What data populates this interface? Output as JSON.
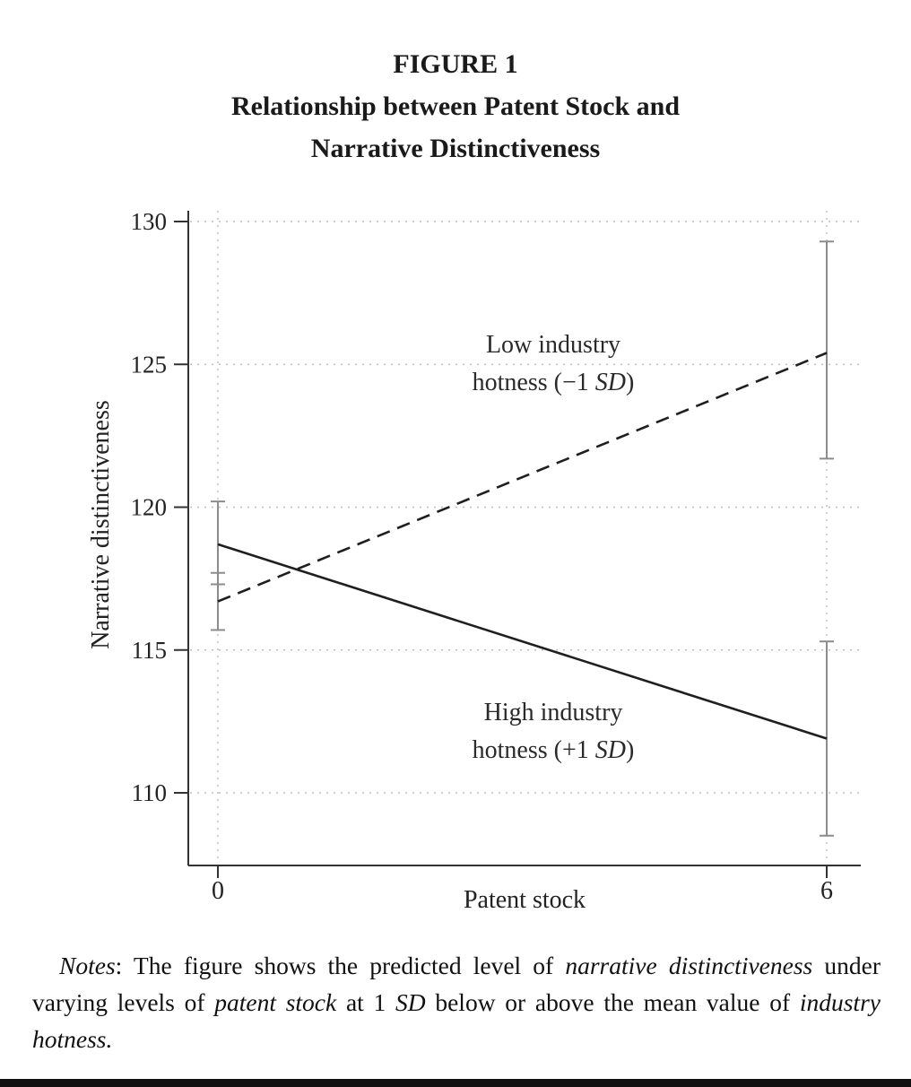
{
  "figure": {
    "label": "FIGURE 1",
    "title_line1": "Relationship between Patent Stock and",
    "title_line2": "Narrative Distinctiveness"
  },
  "chart_data": {
    "type": "line",
    "title": "Relationship between Patent Stock and Narrative Distinctiveness",
    "xlabel": "Patent stock",
    "ylabel": "Narrative distinctiveness",
    "x_ticks": [
      0,
      6
    ],
    "y_ticks": [
      110,
      115,
      120,
      125,
      130
    ],
    "xlim": [
      0,
      6
    ],
    "ylim": [
      110,
      130
    ],
    "grid": "dotted",
    "error_bar_color": "#8c8c8c",
    "line_color": "#1f1f1f",
    "series": [
      {
        "name": "Low industry hotness (−1 SD)",
        "line_style": "dashed",
        "x": [
          0,
          6
        ],
        "y": [
          116.7,
          125.4
        ],
        "ci_low": [
          115.7,
          121.7
        ],
        "ci_high": [
          117.7,
          129.3
        ],
        "label_segments": [
          [
            {
              "text": "Low industry"
            }
          ],
          [
            {
              "text": "hotness (−1 "
            },
            {
              "text": "SD",
              "italic": true
            },
            {
              "text": ")"
            }
          ]
        ]
      },
      {
        "name": "High industry hotness (+1 SD)",
        "line_style": "solid",
        "x": [
          0,
          6
        ],
        "y": [
          118.7,
          111.9
        ],
        "ci_low": [
          117.3,
          108.5
        ],
        "ci_high": [
          120.2,
          115.3
        ],
        "label_segments": [
          [
            {
              "text": "High industry"
            }
          ],
          [
            {
              "text": "hotness (+1 "
            },
            {
              "text": "SD",
              "italic": true
            },
            {
              "text": ")"
            }
          ]
        ]
      }
    ]
  },
  "notes": {
    "segments": [
      {
        "text": "Notes",
        "italic": true
      },
      {
        "text": ": The figure shows the predicted level of "
      },
      {
        "text": "narrative distinctiveness",
        "italic": true
      },
      {
        "text": " under varying levels of "
      },
      {
        "text": "patent stock",
        "italic": true
      },
      {
        "text": " at 1 "
      },
      {
        "text": "SD",
        "italic": true
      },
      {
        "text": " below or above the mean value of "
      },
      {
        "text": "industry hotness.",
        "italic": true
      }
    ]
  }
}
